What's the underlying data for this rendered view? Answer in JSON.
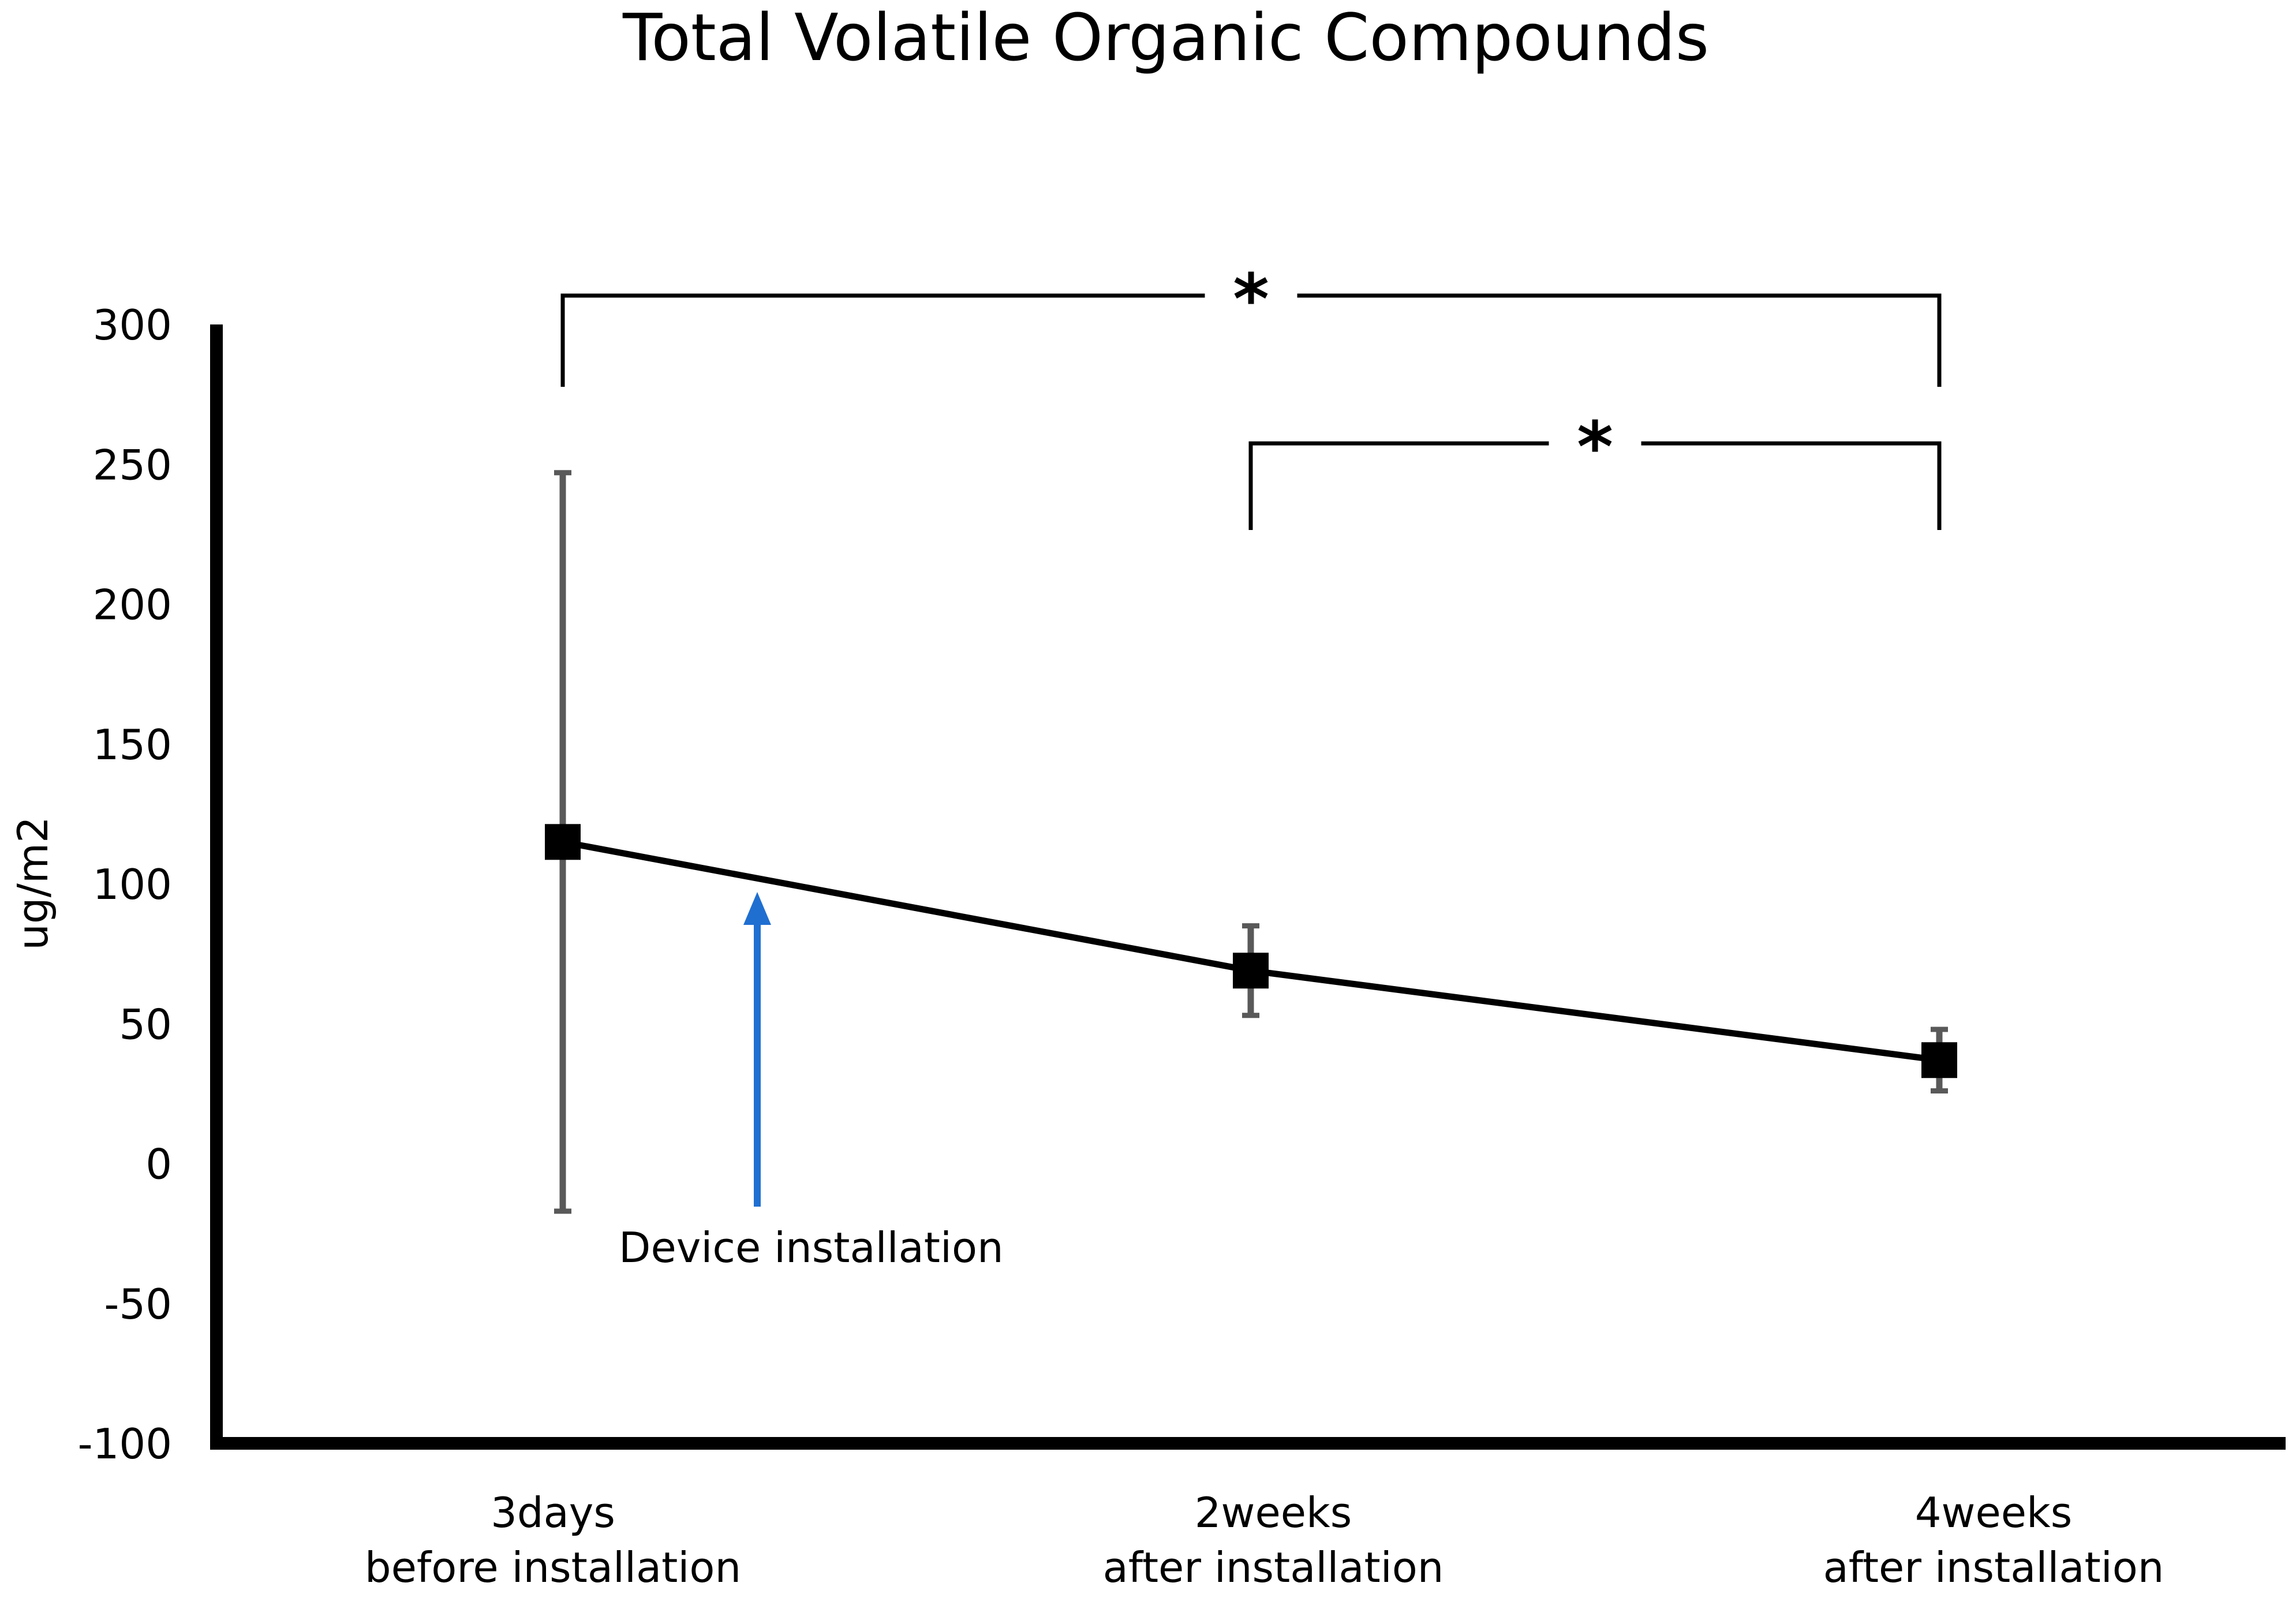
{
  "chart_data": {
    "type": "line",
    "title": "Total Volatile Organic Compounds",
    "xlabel": "",
    "ylabel": "ug/m2",
    "ylim": [
      -100,
      300
    ],
    "yticks": [
      -100,
      -50,
      0,
      50,
      100,
      150,
      200,
      250,
      300
    ],
    "categories": [
      [
        "3days",
        "before installation"
      ],
      [
        "2weeks",
        "after installation"
      ],
      [
        "4weeks",
        "after installation"
      ]
    ],
    "series": [
      {
        "values": [
          115,
          69,
          37
        ],
        "error_low": [
          -17,
          53,
          26
        ],
        "error_high": [
          247,
          85,
          48
        ]
      }
    ],
    "significance": [
      {
        "from": 0,
        "to": 2,
        "label": "*"
      },
      {
        "from": 1,
        "to": 2,
        "label": "*"
      }
    ],
    "annotation": {
      "text": "Device installation",
      "arrow_color": "#1f6fd1"
    },
    "grid": false,
    "legend": "none",
    "colors": {
      "line": "#000000",
      "errorbar": "#595959",
      "arrow": "#1f6fd1"
    }
  }
}
